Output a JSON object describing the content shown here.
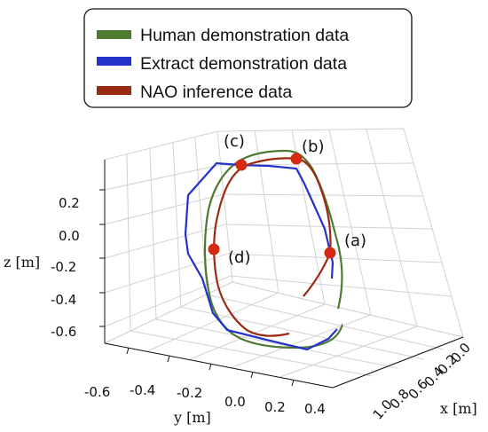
{
  "chart_data": {
    "type": "line3d",
    "legend": {
      "placement": "top",
      "entries": [
        {
          "label": "Human demonstration data",
          "color": "#4f7a32"
        },
        {
          "label": "Extract demonstration data",
          "color": "#2333c9"
        },
        {
          "label": "NAO inference data",
          "color": "#9b2a12"
        }
      ]
    },
    "axes": {
      "x": {
        "label": "x [m]",
        "ticks": [
          "0.0",
          "0.2",
          "0.4",
          "0.6",
          "0.8",
          "1.0"
        ]
      },
      "y": {
        "label": "y [m]",
        "ticks": [
          "-0.6",
          "-0.4",
          "-0.2",
          "0.0",
          "0.2",
          "0.4"
        ]
      },
      "z": {
        "label": "z [m]",
        "ticks": [
          "0.2",
          "0.0",
          "-0.2",
          "-0.4",
          "-0.6"
        ]
      }
    },
    "grid": true,
    "annotations": [
      {
        "label": "(a)"
      },
      {
        "label": "(b)"
      },
      {
        "label": "(c)"
      },
      {
        "label": "(d)"
      }
    ],
    "series": [
      {
        "name": "Human demonstration data",
        "color": "#4f7a32"
      },
      {
        "name": "Extract demonstration data",
        "color": "#2333c9"
      },
      {
        "name": "NAO inference data",
        "color": "#9b2a12"
      }
    ]
  }
}
